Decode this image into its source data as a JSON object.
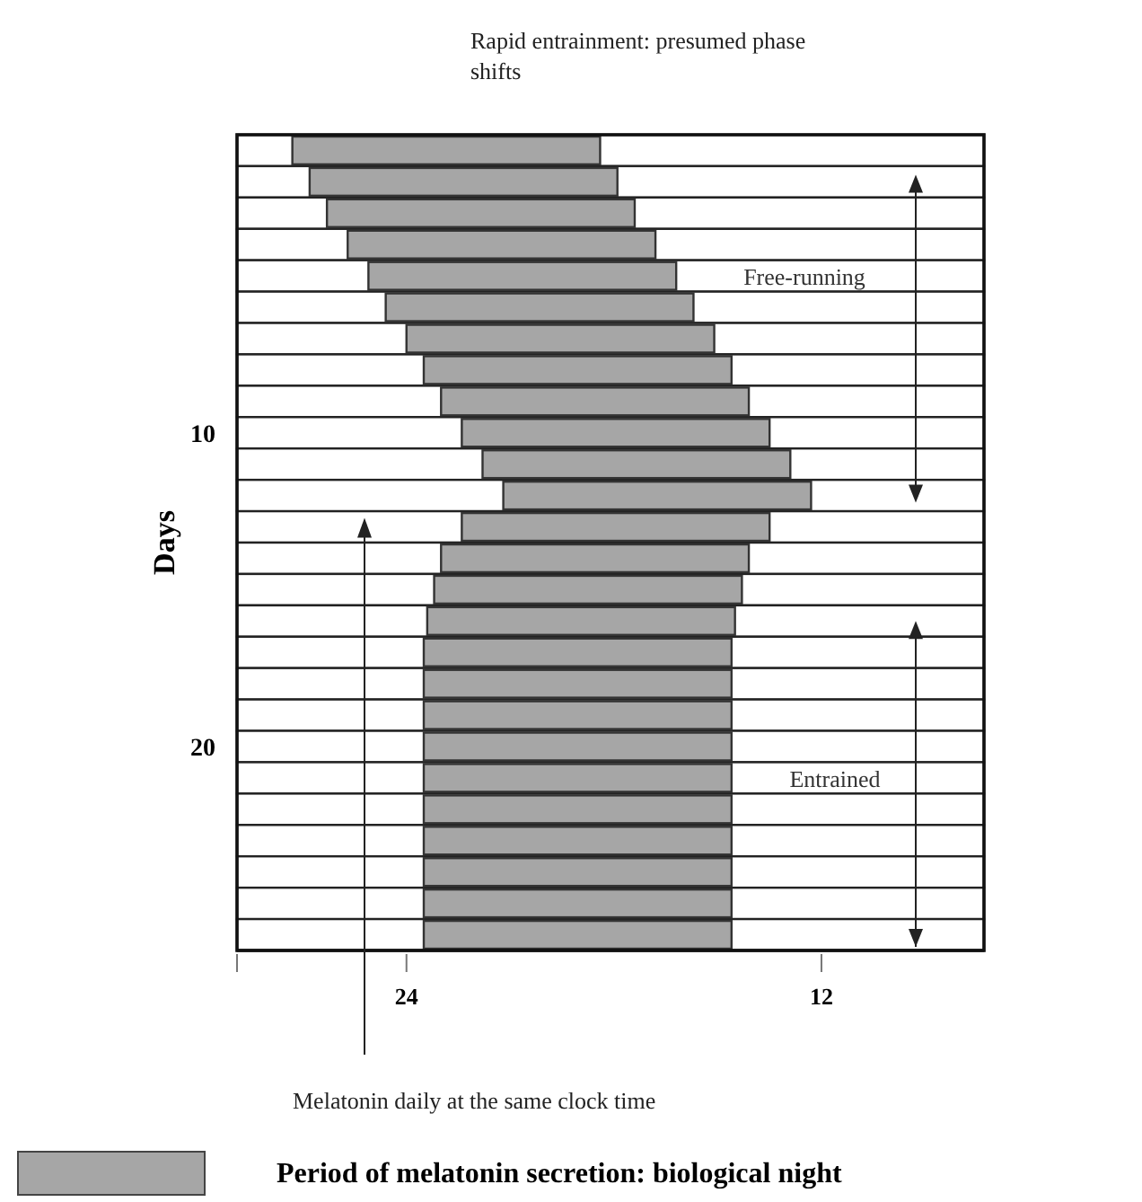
{
  "chart_data": {
    "type": "bar",
    "orientation": "horizontal",
    "title": "Rapid entrainment: presumed phase shifts",
    "ylabel": "Days",
    "categories": [
      null,
      null,
      null,
      null,
      null,
      null,
      null,
      null,
      null,
      "10",
      null,
      null,
      null,
      null,
      null,
      null,
      null,
      null,
      null,
      "20",
      null,
      null,
      null,
      null,
      null,
      null
    ],
    "series": [
      {
        "name": "Period of melatonin secretion: biological night",
        "color": "#a6a6a6",
        "base": [
          18.4,
          17.9,
          17.4,
          16.8,
          16.2,
          15.7,
          15.1,
          14.6,
          14.1,
          13.5,
          12.9,
          12.3,
          13.5,
          14.1,
          14.3,
          14.5,
          14.6,
          14.6,
          14.6,
          14.6,
          14.6,
          14.6,
          14.6,
          14.6,
          14.6,
          14.6
        ],
        "values": [
          8.9,
          8.9,
          8.9,
          8.9,
          8.9,
          8.9,
          8.9,
          8.9,
          8.9,
          8.9,
          8.9,
          8.9,
          8.9,
          8.9,
          8.9,
          8.9,
          8.9,
          8.9,
          8.9,
          8.9,
          8.9,
          8.9,
          8.9,
          8.9,
          8.9,
          8.9
        ]
      }
    ],
    "xlim": [
      28.9,
      7.3
    ],
    "xticks": [
      {
        "value": 28.9,
        "label": null
      },
      24,
      12
    ],
    "grid": false,
    "legend": "bottom",
    "annotations": [
      "Free-running",
      "Entrained",
      "Melatonin daily at the same clock time"
    ]
  }
}
